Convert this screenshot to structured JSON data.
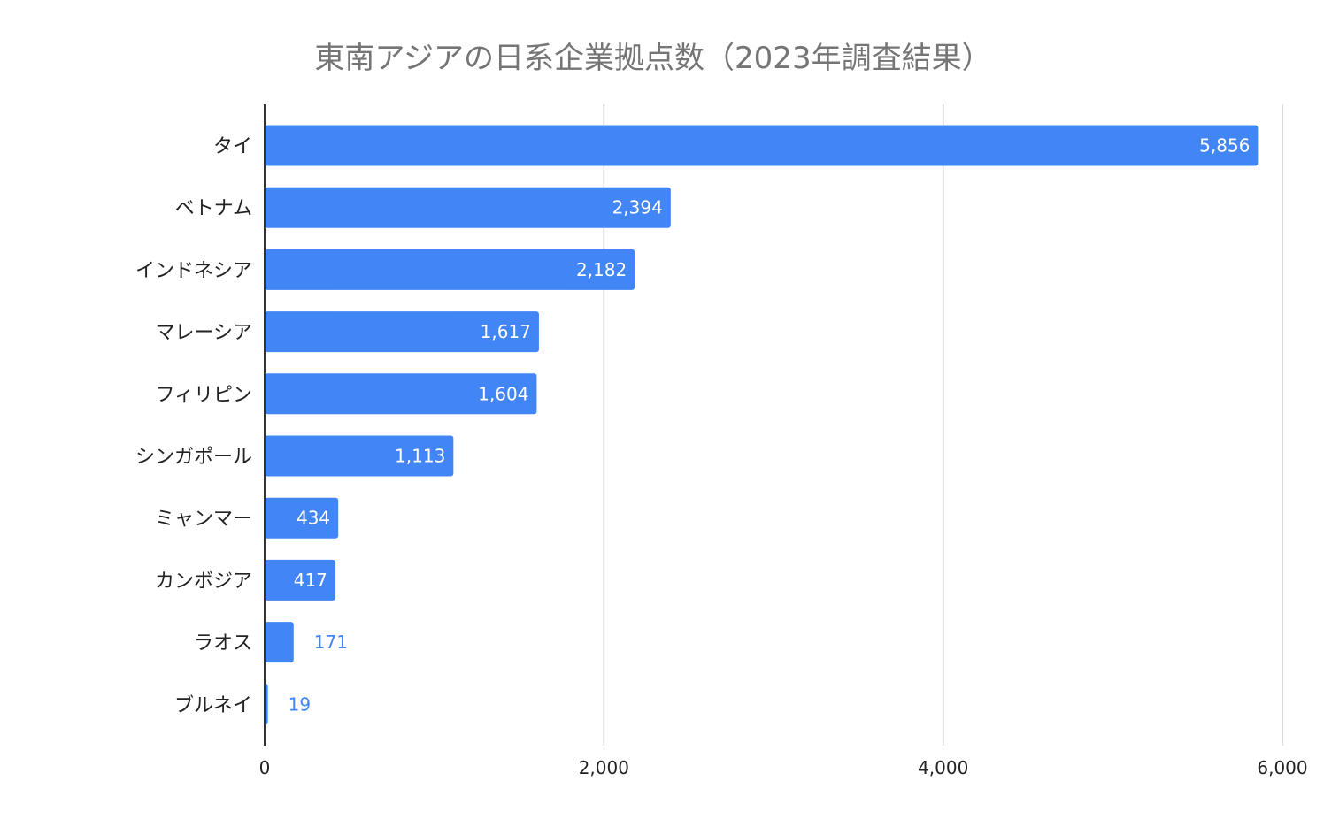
{
  "chart_data": {
    "type": "bar",
    "orientation": "horizontal",
    "title": "東南アジアの日系企業拠点数（2023年調査結果）",
    "xlabel": "",
    "ylabel": "",
    "categories": [
      "タイ",
      "ベトナム",
      "インドネシア",
      "マレーシア",
      "フィリピン",
      "シンガポール",
      "ミャンマー",
      "カンボジア",
      "ラオス",
      "ブルネイ"
    ],
    "values": [
      5856,
      2394,
      2182,
      1617,
      1604,
      1113,
      434,
      417,
      171,
      19
    ],
    "value_labels": [
      "5,856",
      "2,394",
      "2,182",
      "1,617",
      "1,604",
      "1,113",
      "434",
      "417",
      "171",
      "19"
    ],
    "xlim": [
      0,
      6000
    ],
    "x_ticks": [
      0,
      2000,
      4000,
      6000
    ],
    "x_tick_labels": [
      "0",
      "2,000",
      "4,000",
      "6,000"
    ],
    "grid": true,
    "legend": "none",
    "bar_color": "#4285f4",
    "label_inside_color": "#ffffff",
    "label_outside_color": "#4285f4",
    "gridline_color": "#cccccc",
    "axis_color": "#333333"
  }
}
